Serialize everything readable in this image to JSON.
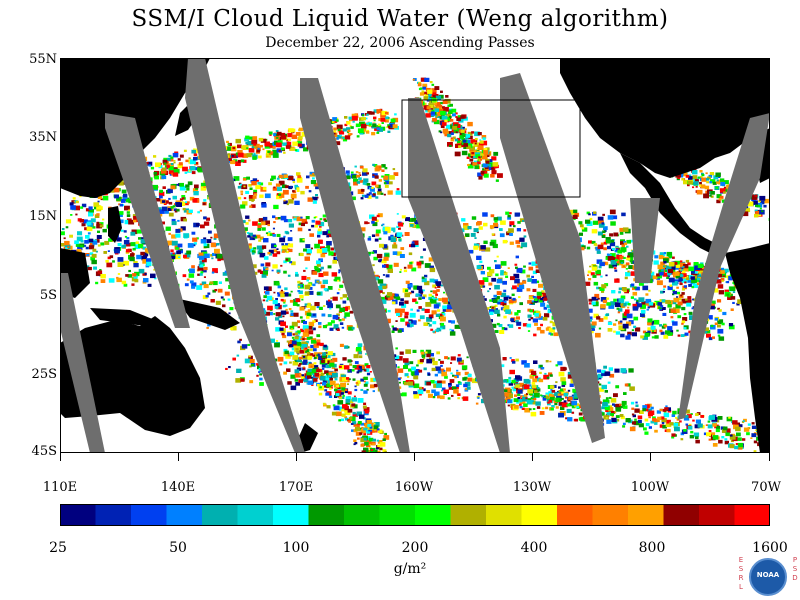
{
  "header": {
    "title": "SSM/I Cloud Liquid Water (Weng algorithm)",
    "subtitle": "December 22, 2006  Ascending Passes"
  },
  "map": {
    "lat_labels": [
      "55N",
      "35N",
      "15N",
      "5S",
      "25S",
      "45S"
    ],
    "lon_labels": [
      "110E",
      "140E",
      "170E",
      "160W",
      "130W",
      "100W",
      "70W"
    ],
    "colors": {
      "ocean_clear": "#ffffff",
      "land": "#000000",
      "swath_gap": "#6e6e6e",
      "region_box": "#000000"
    }
  },
  "colorbar": {
    "tick_labels": [
      "25",
      "50",
      "100",
      "200",
      "400",
      "800",
      "1600"
    ],
    "units": "g/m²",
    "colors": [
      "#00007f",
      "#0022b4",
      "#0040f0",
      "#0080ff",
      "#00b0b0",
      "#00d0d0",
      "#00ffff",
      "#009900",
      "#00c000",
      "#00e000",
      "#00ff00",
      "#b0b000",
      "#e0e000",
      "#ffff00",
      "#ff6000",
      "#ff8000",
      "#ffa000",
      "#900000",
      "#c00000",
      "#ff0000"
    ]
  },
  "logo": {
    "left_letters": [
      "E",
      "S",
      "R",
      "L"
    ],
    "center_text": "NOAA",
    "right_letters": [
      "P",
      "S",
      "D"
    ]
  }
}
